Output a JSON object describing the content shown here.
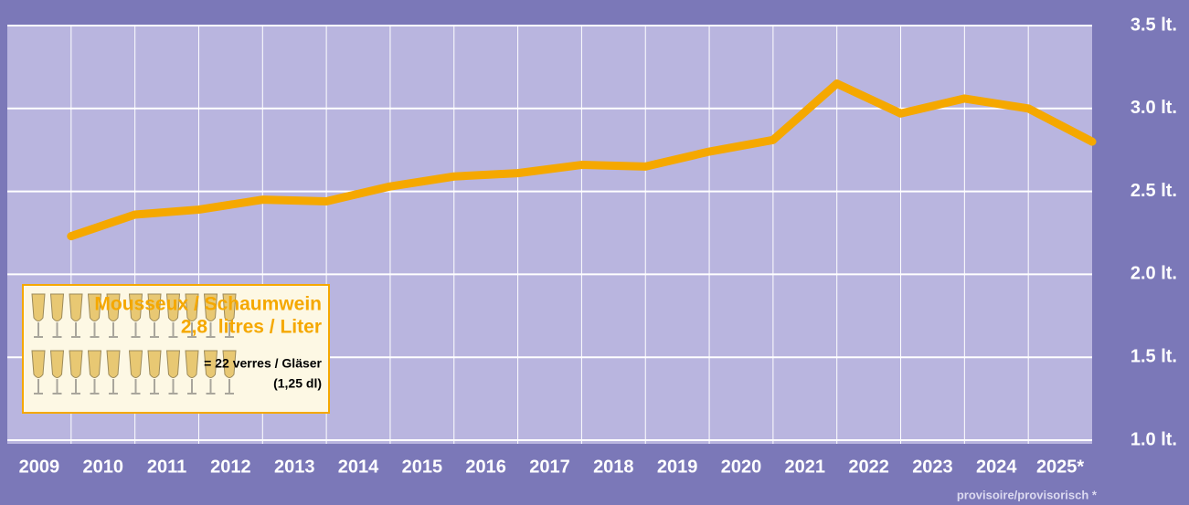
{
  "chart_data": {
    "type": "line",
    "categories": [
      "2009",
      "2010",
      "2011",
      "2012",
      "2013",
      "2014",
      "2015",
      "2016",
      "2017",
      "2018",
      "2019",
      "2020",
      "2021",
      "2022",
      "2023",
      "2024",
      "2025*"
    ],
    "series": [
      {
        "name": "Mousseux / Schaumwein",
        "color": "#f5a800",
        "values": [
          2.23,
          2.36,
          2.39,
          2.45,
          2.44,
          2.53,
          2.59,
          2.61,
          2.66,
          2.65,
          2.74,
          2.81,
          3.15,
          2.97,
          3.06,
          3.0,
          2.8
        ]
      }
    ],
    "ylim": [
      1.0,
      3.5
    ],
    "yticks": [
      {
        "value": 1.0,
        "label": "1.0 lt."
      },
      {
        "value": 1.5,
        "label": "1.5 lt."
      },
      {
        "value": 2.0,
        "label": "2.0 lt."
      },
      {
        "value": 2.5,
        "label": "2.5 lt."
      },
      {
        "value": 3.0,
        "label": "3.0 lt."
      },
      {
        "value": 3.5,
        "label": "3.5 lt."
      }
    ],
    "grid": true,
    "annotations": [
      "2,8  litres / Liter",
      "= 22 verres / Gläser",
      "(1,25 dl)"
    ],
    "footnote": "provisoire/provisorisch *"
  }
}
